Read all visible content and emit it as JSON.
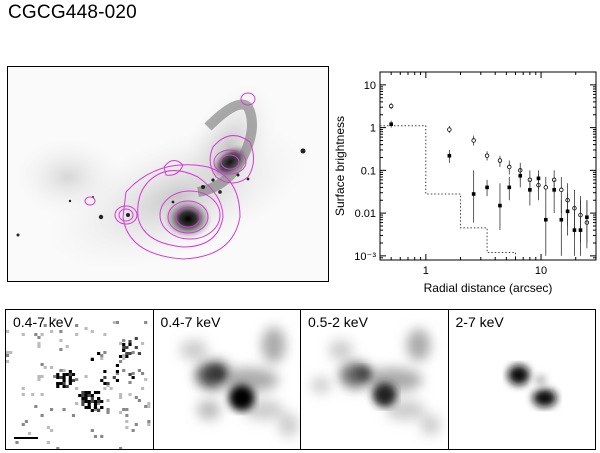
{
  "header": {
    "title": "CGCG448-020"
  },
  "panels": [
    {
      "label": "0.4-7 keV"
    },
    {
      "label": "0.4-7 keV"
    },
    {
      "label": "0.5-2 keV"
    },
    {
      "label": "2-7 keV"
    }
  ],
  "chart_data": {
    "type": "scatter",
    "title": "",
    "xlabel": "Radial distance (arcsec)",
    "ylabel": "Surface brightness",
    "x_scale": "log",
    "y_scale": "log",
    "xlim": [
      0.4,
      30
    ],
    "ylim": [
      0.0008,
      20
    ],
    "x_ticks": [
      {
        "v": 1,
        "label": "1"
      },
      {
        "v": 10,
        "label": "10"
      }
    ],
    "y_ticks": [
      {
        "v": 0.001,
        "label": "10⁻³"
      },
      {
        "v": 0.01,
        "label": "0.01"
      },
      {
        "v": 0.1,
        "label": "0.1"
      },
      {
        "v": 1,
        "label": "1"
      },
      {
        "v": 10,
        "label": "10"
      }
    ],
    "grid": false,
    "series": [
      {
        "marker": "open-circle",
        "points": [
          [
            0.5,
            3.2,
            2.7,
            3.8
          ],
          [
            1.6,
            0.9,
            0.75,
            1.1
          ],
          [
            2.6,
            0.5,
            0.38,
            0.65
          ],
          [
            3.4,
            0.22,
            0.17,
            0.28
          ],
          [
            4.4,
            0.17,
            0.12,
            0.22
          ],
          [
            5.3,
            0.12,
            0.08,
            0.17
          ],
          [
            6.6,
            0.1,
            0.06,
            0.15
          ],
          [
            8.0,
            0.06,
            0.03,
            0.1
          ],
          [
            9.5,
            0.045,
            0.02,
            0.08
          ],
          [
            11,
            0.04,
            0.02,
            0.07
          ],
          [
            13,
            0.06,
            0.03,
            0.1
          ],
          [
            15,
            0.035,
            0.01,
            0.07
          ],
          [
            17,
            0.02,
            0.005,
            0.05
          ],
          [
            19.5,
            0.013,
            0.003,
            0.035
          ],
          [
            22,
            0.009,
            0.002,
            0.025
          ],
          [
            25,
            0.006,
            0.0015,
            0.02
          ]
        ]
      },
      {
        "marker": "filled-square",
        "points": [
          [
            0.5,
            1.2,
            1.0,
            1.45
          ],
          [
            1.6,
            0.22,
            0.15,
            0.3
          ],
          [
            2.6,
            0.028,
            0.006,
            0.1
          ],
          [
            3.4,
            0.04,
            0.025,
            0.06
          ],
          [
            4.4,
            0.015,
            0.004,
            0.05
          ],
          [
            5.3,
            0.04,
            0.02,
            0.07
          ],
          [
            6.6,
            0.075,
            0.04,
            0.11
          ],
          [
            8.0,
            0.035,
            0.015,
            0.06
          ],
          [
            9.5,
            0.065,
            0.035,
            0.1
          ],
          [
            11,
            0.007,
            0.001,
            0.02
          ],
          [
            13,
            0.035,
            0.01,
            0.06
          ],
          [
            15,
            0.007,
            0.001,
            0.02
          ],
          [
            17,
            0.011,
            0.003,
            0.03
          ],
          [
            19.5,
            0.004,
            0.001,
            0.015
          ],
          [
            22,
            0.004,
            0.001,
            0.02
          ],
          [
            25,
            0.008,
            0.002,
            0.02
          ]
        ]
      }
    ],
    "psf_profile": [
      [
        0.4,
        1.1
      ],
      [
        1.0,
        1.1
      ],
      [
        1.0,
        0.028
      ],
      [
        2.0,
        0.028
      ],
      [
        2.0,
        0.0045
      ],
      [
        3.4,
        0.0045
      ],
      [
        3.4,
        0.0012
      ],
      [
        6.0,
        0.0012
      ],
      [
        6.0,
        0.0008
      ]
    ]
  }
}
